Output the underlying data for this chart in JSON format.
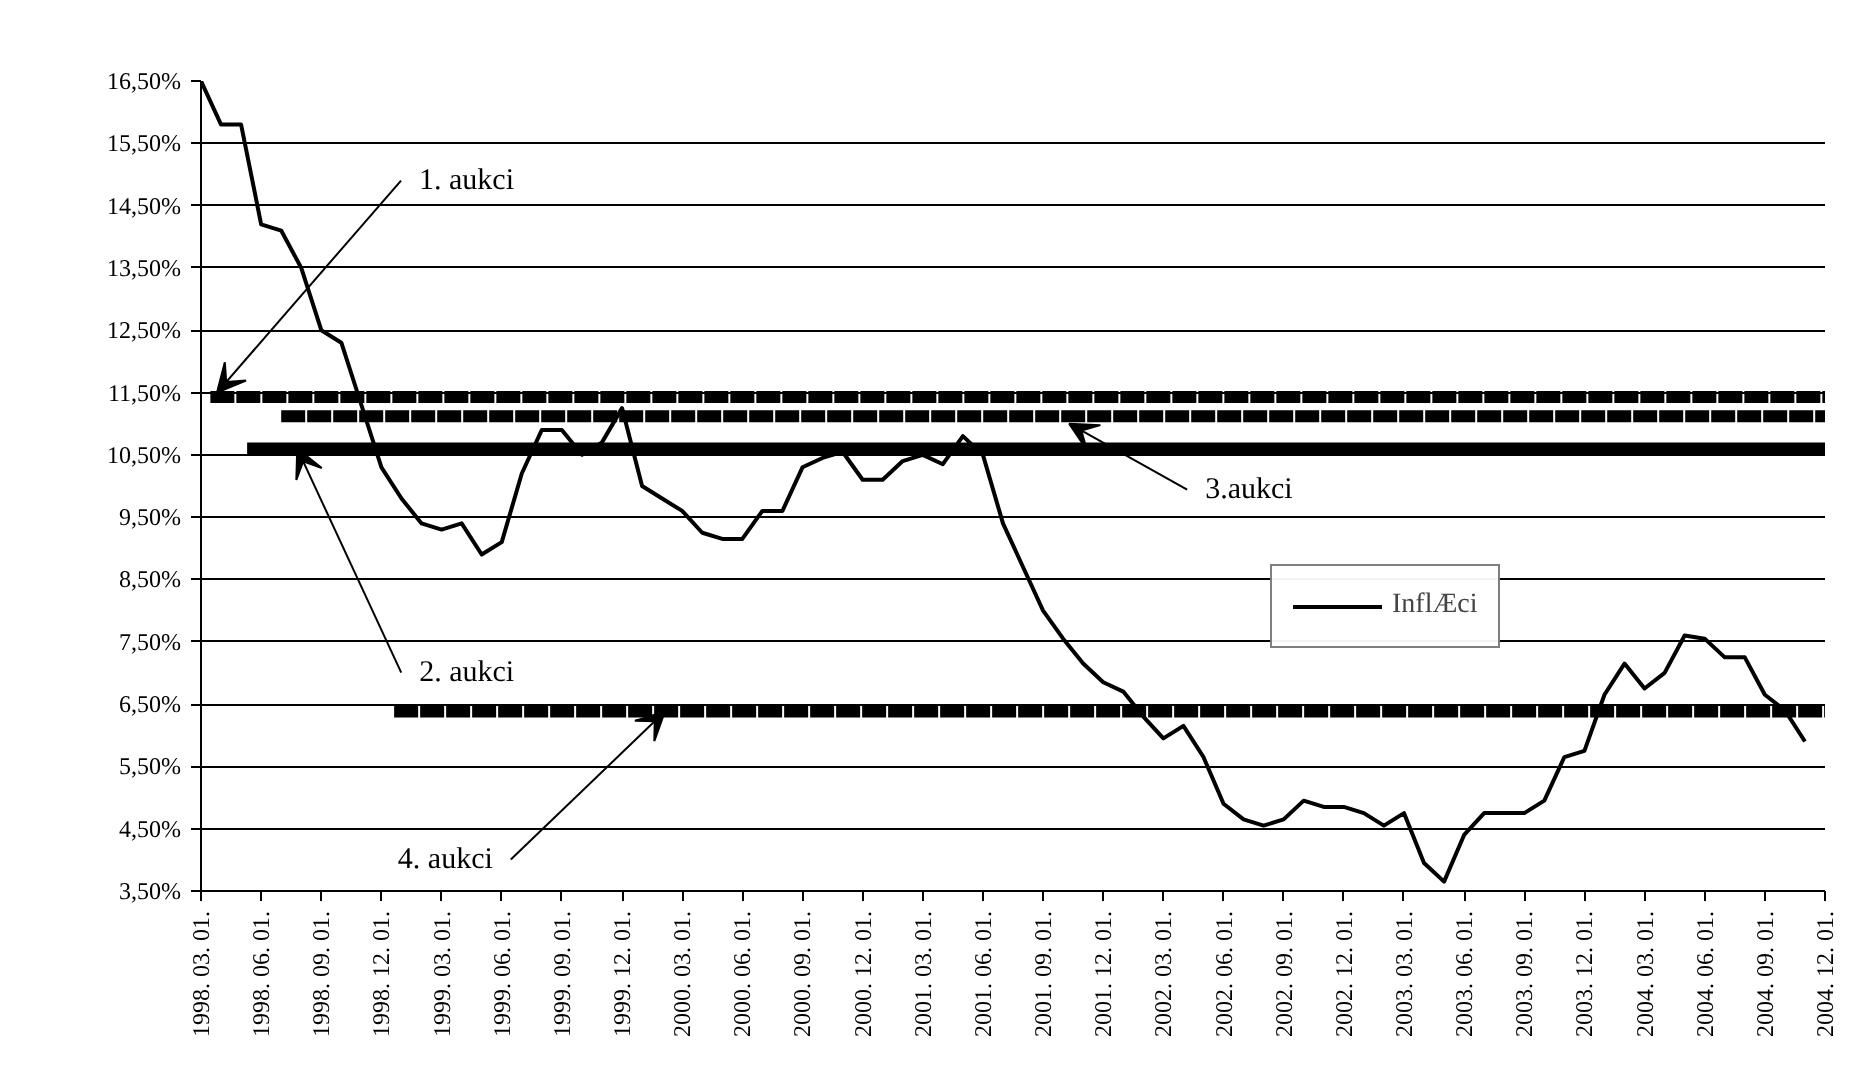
{
  "chart_data": {
    "type": "line",
    "ylim": [
      3.5,
      16.5
    ],
    "yticks": [
      {
        "value": 3.5,
        "label": "3,50%"
      },
      {
        "value": 4.5,
        "label": "4,50%"
      },
      {
        "value": 5.5,
        "label": "5,50%"
      },
      {
        "value": 6.5,
        "label": "6,50%"
      },
      {
        "value": 7.5,
        "label": "7,50%"
      },
      {
        "value": 8.5,
        "label": "8,50%"
      },
      {
        "value": 9.5,
        "label": "9,50%"
      },
      {
        "value": 10.5,
        "label": "10,50%"
      },
      {
        "value": 11.5,
        "label": "11,50%"
      },
      {
        "value": 12.5,
        "label": "12,50%"
      },
      {
        "value": 13.5,
        "label": "13,50%"
      },
      {
        "value": 14.5,
        "label": "14,50%"
      },
      {
        "value": 15.5,
        "label": "15,50%"
      },
      {
        "value": 16.5,
        "label": "16,50%"
      }
    ],
    "xlim": [
      "1998-03",
      "2004-12"
    ],
    "xticks": [
      {
        "value": "1998-03",
        "label": "1998. 03. 01."
      },
      {
        "value": "1998-06",
        "label": "1998. 06. 01."
      },
      {
        "value": "1998-09",
        "label": "1998. 09. 01."
      },
      {
        "value": "1998-12",
        "label": "1998. 12. 01."
      },
      {
        "value": "1999-03",
        "label": "1999. 03. 01."
      },
      {
        "value": "1999-06",
        "label": "1999. 06. 01."
      },
      {
        "value": "1999-09",
        "label": "1999. 09. 01."
      },
      {
        "value": "1999-12",
        "label": "1999. 12. 01."
      },
      {
        "value": "2000-03",
        "label": "2000. 03. 01."
      },
      {
        "value": "2000-06",
        "label": "2000. 06. 01."
      },
      {
        "value": "2000-09",
        "label": "2000. 09. 01."
      },
      {
        "value": "2000-12",
        "label": "2000. 12. 01."
      },
      {
        "value": "2001-03",
        "label": "2001. 03. 01."
      },
      {
        "value": "2001-06",
        "label": "2001. 06. 01."
      },
      {
        "value": "2001-09",
        "label": "2001. 09. 01."
      },
      {
        "value": "2001-12",
        "label": "2001. 12. 01."
      },
      {
        "value": "2002-03",
        "label": "2002. 03. 01."
      },
      {
        "value": "2002-06",
        "label": "2002. 06. 01."
      },
      {
        "value": "2002-09",
        "label": "2002. 09. 01."
      },
      {
        "value": "2002-12",
        "label": "2002. 12. 01."
      },
      {
        "value": "2003-03",
        "label": "2003. 03. 01."
      },
      {
        "value": "2003-06",
        "label": "2003. 06. 01."
      },
      {
        "value": "2003-09",
        "label": "2003. 09. 01."
      },
      {
        "value": "2003-12",
        "label": "2003. 12. 01."
      },
      {
        "value": "2004-03",
        "label": "2004. 03. 01."
      },
      {
        "value": "2004-06",
        "label": "2004. 06. 01."
      },
      {
        "value": "2004-09",
        "label": "2004. 09. 01."
      },
      {
        "value": "2004-12",
        "label": "2004. 12. 01."
      }
    ],
    "grid": "y",
    "legend": "right",
    "series": [
      {
        "name": "InflÆci",
        "color": "#000000",
        "x": [
          "1998-03",
          "1998-04",
          "1998-05",
          "1998-06",
          "1998-07",
          "1998-08",
          "1998-09",
          "1998-10",
          "1998-11",
          "1998-12",
          "1999-01",
          "1999-02",
          "1999-03",
          "1999-04",
          "1999-05",
          "1999-06",
          "1999-07",
          "1999-08",
          "1999-09",
          "1999-10",
          "1999-11",
          "1999-12",
          "2000-01",
          "2000-02",
          "2000-03",
          "2000-04",
          "2000-05",
          "2000-06",
          "2000-07",
          "2000-08",
          "2000-09",
          "2000-10",
          "2000-11",
          "2000-12",
          "2001-01",
          "2001-02",
          "2001-03",
          "2001-04",
          "2001-05",
          "2001-06",
          "2001-07",
          "2001-08",
          "2001-09",
          "2001-10",
          "2001-11",
          "2001-12",
          "2002-01",
          "2002-02",
          "2002-03",
          "2002-04",
          "2002-05",
          "2002-06",
          "2002-07",
          "2002-08",
          "2002-09",
          "2002-10",
          "2002-11",
          "2002-12",
          "2003-01",
          "2003-02",
          "2003-03",
          "2003-04",
          "2003-05",
          "2003-06",
          "2003-07",
          "2003-08",
          "2003-09",
          "2003-10",
          "2003-11",
          "2003-12",
          "2004-01",
          "2004-02",
          "2004-03",
          "2004-04",
          "2004-05",
          "2004-06",
          "2004-07",
          "2004-08",
          "2004-09",
          "2004-10",
          "2004-11"
        ],
        "values": [
          16.5,
          15.8,
          15.8,
          14.2,
          14.1,
          13.5,
          12.5,
          12.3,
          11.3,
          10.3,
          9.8,
          9.4,
          9.3,
          9.4,
          8.9,
          9.1,
          10.2,
          10.9,
          10.9,
          10.5,
          10.7,
          11.25,
          10.0,
          9.8,
          9.6,
          9.25,
          9.15,
          9.15,
          9.6,
          9.6,
          10.3,
          10.45,
          10.55,
          10.1,
          10.1,
          10.4,
          10.5,
          10.35,
          10.8,
          10.5,
          9.4,
          8.7,
          8.0,
          7.55,
          7.15,
          6.85,
          6.7,
          6.3,
          5.95,
          6.15,
          5.65,
          4.9,
          4.65,
          4.55,
          4.65,
          4.95,
          4.85,
          4.85,
          4.75,
          4.55,
          4.75,
          3.95,
          3.65,
          4.4,
          4.75,
          4.75,
          4.75,
          4.95,
          5.65,
          5.75,
          6.65,
          7.15,
          6.75,
          7.0,
          7.6,
          7.55,
          7.25,
          7.25,
          6.65,
          6.4,
          5.9
        ]
      },
      {
        "color": "#000000",
        "x": [
          "1998-03-15",
          "2004-12"
        ],
        "values": [
          11.43,
          11.43
        ],
        "line_style": "dashed"
      },
      {
        "color": "#000000",
        "x": [
          "1998-07",
          "2004-12"
        ],
        "values": [
          11.12,
          11.12
        ],
        "line_style": "dashed"
      },
      {
        "color": "#000000",
        "x": [
          "1998-05-10",
          "2004-12"
        ],
        "values": [
          10.6,
          10.6
        ],
        "line_style": "solid"
      },
      {
        "color": "#000000",
        "x": [
          "1998-12-20",
          "2004-12"
        ],
        "values": [
          6.38,
          6.38
        ],
        "line_style": "dashed"
      }
    ],
    "annotations": [
      {
        "text": "1. aukci",
        "x": "1998-03-25",
        "y": 11.5
      },
      {
        "text": "2. aukci",
        "x": "1998-07-25",
        "y": 10.6
      },
      {
        "text": "3.aukci",
        "x": "2001-10-10",
        "y": 11.0
      },
      {
        "text": "4. aukci",
        "x": "2000-02-05",
        "y": 6.38
      }
    ]
  }
}
